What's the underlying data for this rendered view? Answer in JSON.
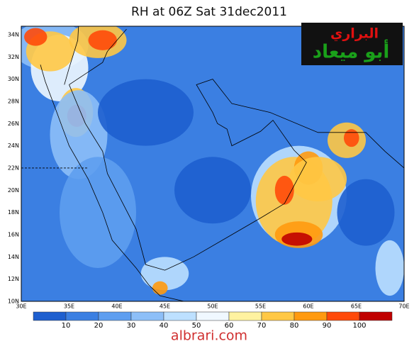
{
  "title": "RH at 06Z Sat 31dec2011",
  "lat_labels": [
    "34N",
    "32N",
    "30N",
    "28N",
    "26N",
    "24N",
    "22N",
    "20N",
    "18N",
    "16N",
    "14N",
    "12N",
    "10N"
  ],
  "lon_labels": [
    "30E",
    "35E",
    "40E",
    "45E",
    "50E",
    "55E",
    "60E",
    "65E",
    "70E"
  ],
  "colorbar": {
    "colors": [
      "#1e5fcf",
      "#3b7fe2",
      "#5e9ef0",
      "#8dbff8",
      "#bde0ff",
      "#f0f8ff",
      "#fff2a0",
      "#ffc845",
      "#ff9a10",
      "#ff4a0a",
      "#c00000"
    ],
    "labels": [
      10,
      20,
      30,
      40,
      50,
      60,
      70,
      80,
      90,
      100
    ]
  },
  "logo": {
    "line1": "البراري",
    "line2": "أبو ميعاد"
  },
  "footer": "albrari.com"
}
